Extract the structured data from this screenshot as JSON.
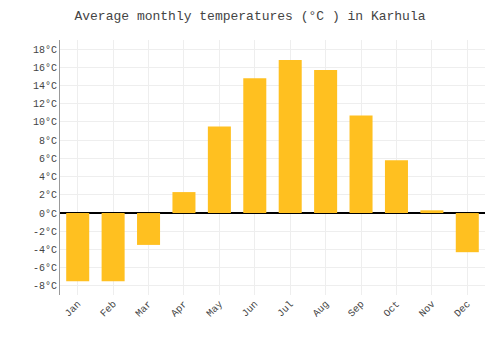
{
  "chart_data": {
    "type": "bar",
    "title": "Average monthly temperatures (°C ) in Karhula",
    "categories": [
      "Jan",
      "Feb",
      "Mar",
      "Apr",
      "May",
      "Jun",
      "Jul",
      "Aug",
      "Sep",
      "Oct",
      "Nov",
      "Dec"
    ],
    "values": [
      -7.5,
      -7.5,
      -3.5,
      2.3,
      9.5,
      14.8,
      16.8,
      15.7,
      10.7,
      5.8,
      0.3,
      -4.3
    ],
    "color": "#FFC020",
    "ylim": [
      -9,
      19
    ],
    "yticks": [
      {
        "value": -8,
        "label": "-8°C"
      },
      {
        "value": -6,
        "label": "-6°C"
      },
      {
        "value": -4,
        "label": "-4°C"
      },
      {
        "value": -2,
        "label": "-2°C"
      },
      {
        "value": 0,
        "label": "0°C"
      },
      {
        "value": 2,
        "label": "2°C"
      },
      {
        "value": 4,
        "label": "4°C"
      },
      {
        "value": 6,
        "label": "6°C"
      },
      {
        "value": 8,
        "label": "8°C"
      },
      {
        "value": 10,
        "label": "10°C"
      },
      {
        "value": 12,
        "label": "12°C"
      },
      {
        "value": 14,
        "label": "14°C"
      },
      {
        "value": 16,
        "label": "16°C"
      },
      {
        "value": 18,
        "label": "18°C"
      }
    ],
    "grid": true
  }
}
